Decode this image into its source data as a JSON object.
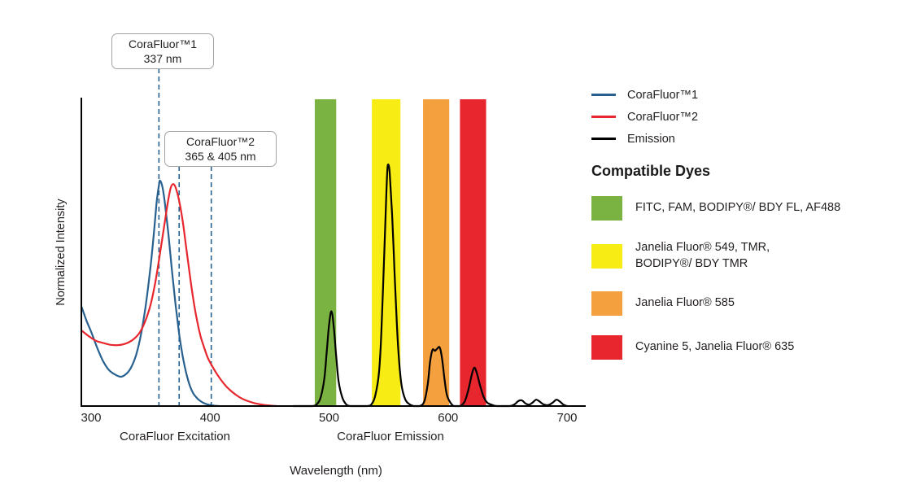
{
  "chart_data": {
    "type": "line",
    "axes": {
      "xlabel": "Wavelength (nm)",
      "ylabel": "Normalized Intensity",
      "x_ticks": [
        300,
        400,
        500,
        600,
        700
      ],
      "x_range": [
        292,
        716
      ],
      "y_range": [
        0,
        1.37
      ],
      "grid": false,
      "section_labels": [
        "CoraFluor Excitation",
        "CoraFluor Emission"
      ]
    },
    "annotations": [
      {
        "lines": [
          "CoraFluor™1",
          "337 nm"
        ],
        "marker_nm": [
          357
        ]
      },
      {
        "lines": [
          "CoraFluor™2",
          "365 & 405 nm"
        ],
        "marker_nm": [
          374,
          401
        ]
      }
    ],
    "bands": [
      {
        "name": "FITC, FAM, BODIPY/BDY FL, AF488 band",
        "nm_start": 488,
        "nm_end": 506,
        "color": "#7ab342"
      },
      {
        "name": "Janelia Fluor 549, TMR, BODIPY/BDY TMR band",
        "nm_start": 536,
        "nm_end": 560,
        "color": "#f7ec13"
      },
      {
        "name": "Janelia Fluor 585 band",
        "nm_start": 579,
        "nm_end": 601,
        "color": "#f5a03f"
      },
      {
        "name": "Cyanine 5, Janelia Fluor 635 band",
        "nm_start": 610,
        "nm_end": 632,
        "color": "#e8262d"
      }
    ],
    "series": [
      {
        "name": "CoraFluor™1 excitation",
        "color": "#28618f",
        "points": [
          [
            292,
            0.44
          ],
          [
            296,
            0.38
          ],
          [
            300,
            0.33
          ],
          [
            305,
            0.26
          ],
          [
            310,
            0.2
          ],
          [
            315,
            0.16
          ],
          [
            320,
            0.14
          ],
          [
            325,
            0.13
          ],
          [
            330,
            0.145
          ],
          [
            334,
            0.175
          ],
          [
            338,
            0.23
          ],
          [
            342,
            0.32
          ],
          [
            346,
            0.45
          ],
          [
            350,
            0.62
          ],
          [
            353,
            0.78
          ],
          [
            355,
            0.9
          ],
          [
            357,
            0.98
          ],
          [
            358,
            1.0
          ],
          [
            360,
            0.97
          ],
          [
            362,
            0.9
          ],
          [
            365,
            0.76
          ],
          [
            368,
            0.6
          ],
          [
            371,
            0.45
          ],
          [
            374,
            0.32
          ],
          [
            377,
            0.22
          ],
          [
            380,
            0.145
          ],
          [
            383,
            0.09
          ],
          [
            386,
            0.055
          ],
          [
            390,
            0.03
          ],
          [
            394,
            0.015
          ],
          [
            398,
            0.007
          ],
          [
            403,
            0.002
          ],
          [
            408,
            0
          ]
        ]
      },
      {
        "name": "CoraFluor™2 excitation",
        "color": "#e8262d",
        "points": [
          [
            292,
            0.335
          ],
          [
            298,
            0.31
          ],
          [
            304,
            0.29
          ],
          [
            310,
            0.28
          ],
          [
            316,
            0.272
          ],
          [
            322,
            0.27
          ],
          [
            328,
            0.275
          ],
          [
            334,
            0.29
          ],
          [
            340,
            0.32
          ],
          [
            345,
            0.37
          ],
          [
            350,
            0.45
          ],
          [
            354,
            0.55
          ],
          [
            358,
            0.68
          ],
          [
            362,
            0.82
          ],
          [
            365,
            0.92
          ],
          [
            367,
            0.97
          ],
          [
            369,
            0.985
          ],
          [
            371,
            0.97
          ],
          [
            374,
            0.91
          ],
          [
            377,
            0.82
          ],
          [
            380,
            0.7
          ],
          [
            383,
            0.58
          ],
          [
            386,
            0.47
          ],
          [
            389,
            0.38
          ],
          [
            392,
            0.31
          ],
          [
            395,
            0.26
          ],
          [
            398,
            0.215
          ],
          [
            402,
            0.175
          ],
          [
            406,
            0.14
          ],
          [
            410,
            0.11
          ],
          [
            414,
            0.085
          ],
          [
            418,
            0.065
          ],
          [
            423,
            0.045
          ],
          [
            428,
            0.03
          ],
          [
            433,
            0.02
          ],
          [
            438,
            0.012
          ],
          [
            444,
            0.006
          ],
          [
            450,
            0.002
          ],
          [
            456,
            0
          ]
        ]
      },
      {
        "name": "Emission",
        "color": "#000000",
        "points": [
          [
            470,
            0
          ],
          [
            486,
            0
          ],
          [
            490,
            0.01
          ],
          [
            493,
            0.04
          ],
          [
            496,
            0.12
          ],
          [
            498,
            0.24
          ],
          [
            500,
            0.36
          ],
          [
            502,
            0.42
          ],
          [
            504,
            0.35
          ],
          [
            506,
            0.22
          ],
          [
            508,
            0.11
          ],
          [
            511,
            0.04
          ],
          [
            514,
            0.01
          ],
          [
            518,
            0
          ],
          [
            532,
            0
          ],
          [
            536,
            0.01
          ],
          [
            539,
            0.05
          ],
          [
            542,
            0.15
          ],
          [
            544,
            0.33
          ],
          [
            546,
            0.62
          ],
          [
            548,
            0.92
          ],
          [
            549,
            1.05
          ],
          [
            550,
            1.07
          ],
          [
            551,
            1.03
          ],
          [
            553,
            0.85
          ],
          [
            555,
            0.6
          ],
          [
            557,
            0.36
          ],
          [
            559,
            0.19
          ],
          [
            561,
            0.09
          ],
          [
            564,
            0.03
          ],
          [
            567,
            0.01
          ],
          [
            571,
            0
          ],
          [
            576,
            0
          ],
          [
            580,
            0.02
          ],
          [
            583,
            0.1
          ],
          [
            585,
            0.2
          ],
          [
            587,
            0.25
          ],
          [
            589,
            0.245
          ],
          [
            591,
            0.255
          ],
          [
            593,
            0.26
          ],
          [
            595,
            0.21
          ],
          [
            597,
            0.12
          ],
          [
            599,
            0.05
          ],
          [
            602,
            0.015
          ],
          [
            605,
            0
          ],
          [
            610,
            0
          ],
          [
            614,
            0.02
          ],
          [
            617,
            0.07
          ],
          [
            620,
            0.14
          ],
          [
            622,
            0.17
          ],
          [
            624,
            0.15
          ],
          [
            627,
            0.09
          ],
          [
            630,
            0.04
          ],
          [
            633,
            0.015
          ],
          [
            637,
            0.005
          ],
          [
            641,
            0
          ],
          [
            652,
            0
          ],
          [
            656,
            0.008
          ],
          [
            659,
            0.022
          ],
          [
            662,
            0.025
          ],
          [
            665,
            0.012
          ],
          [
            668,
            0.006
          ],
          [
            671,
            0.015
          ],
          [
            674,
            0.028
          ],
          [
            677,
            0.02
          ],
          [
            680,
            0.008
          ],
          [
            684,
            0.004
          ],
          [
            688,
            0.015
          ],
          [
            691,
            0.028
          ],
          [
            694,
            0.02
          ],
          [
            697,
            0.006
          ],
          [
            700,
            0
          ]
        ]
      }
    ],
    "legend": {
      "series": [
        {
          "label": "CoraFluor™1",
          "color": "#28618f"
        },
        {
          "label": "CoraFluor™2",
          "color": "#e8262d"
        },
        {
          "label": "Emission",
          "color": "#000000"
        }
      ],
      "dyes_heading": "Compatible Dyes",
      "dyes": [
        {
          "color": "#7ab342",
          "lines": [
            "FITC, FAM, BODIPY®/ BDY FL, AF488",
            ""
          ]
        },
        {
          "color": "#f7ec13",
          "lines": [
            "Janelia Fluor® 549, TMR,",
            "BODIPY®/ BDY TMR"
          ]
        },
        {
          "color": "#f5a03f",
          "lines": [
            "Janelia Fluor® 585",
            ""
          ]
        },
        {
          "color": "#e8262d",
          "lines": [
            "Cyanine 5, Janelia Fluor® 635",
            ""
          ]
        }
      ]
    }
  }
}
